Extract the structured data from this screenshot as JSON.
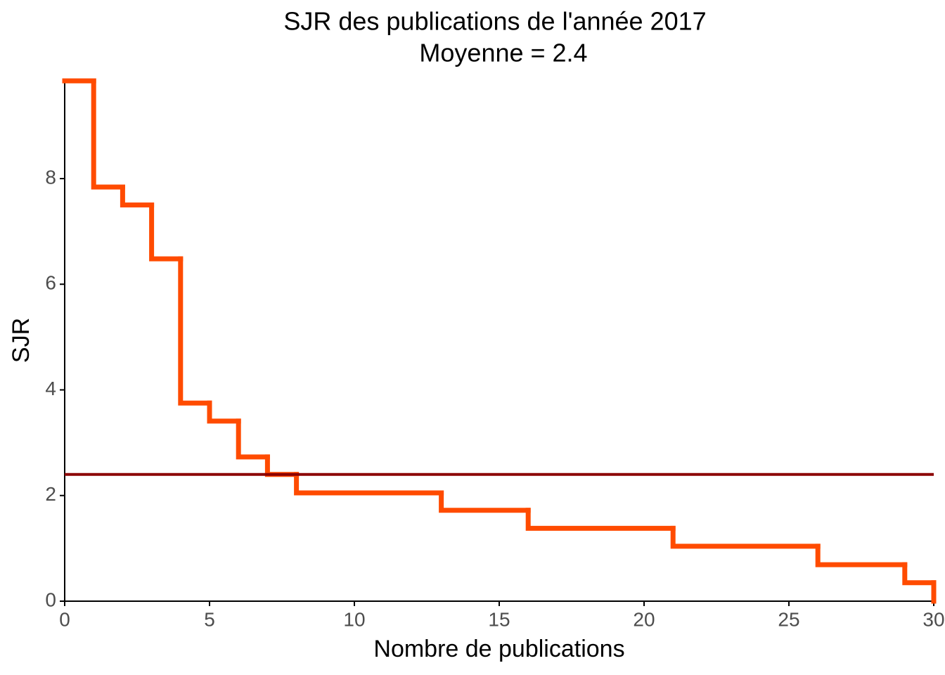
{
  "chart_data": {
    "type": "step",
    "title": "SJR des publications de l'année 2017",
    "subtitle": "Moyenne = 2.4",
    "x_label": "Nombre de publications",
    "y_label": "SJR",
    "x": [
      0,
      1,
      2,
      3,
      4,
      5,
      6,
      7,
      8,
      13,
      16,
      21,
      26,
      29,
      30
    ],
    "values": [
      9.85,
      7.84,
      7.5,
      6.48,
      3.75,
      3.41,
      2.73,
      2.4,
      2.05,
      1.72,
      1.38,
      1.04,
      0.69,
      0.35,
      0
    ],
    "color": "#ff4b00",
    "hline": {
      "value": 2.4,
      "color": "#8b0000"
    },
    "xlim": [
      0,
      30
    ],
    "xticks": [
      0,
      5,
      10,
      15,
      20,
      25,
      30
    ],
    "ylim": [
      0,
      9.85
    ],
    "yticks": [
      0,
      2,
      4,
      6,
      8
    ],
    "grid": false
  }
}
